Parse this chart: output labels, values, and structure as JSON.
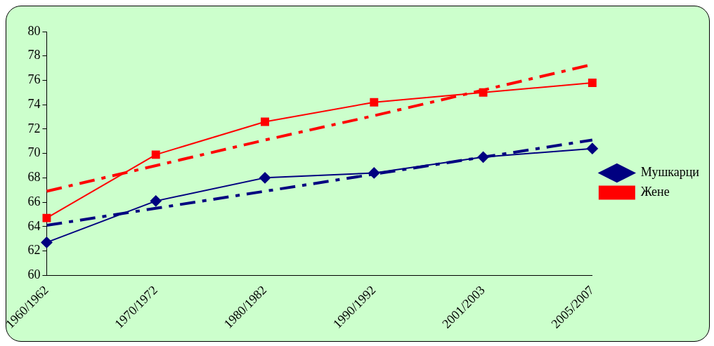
{
  "chart_data": {
    "type": "line",
    "categories": [
      "1960/1962",
      "1970/1972",
      "1980/1982",
      "1990/1992",
      "2001/2003",
      "2005/2007"
    ],
    "series": [
      {
        "name": "Мушкарци",
        "color": "#000080",
        "marker": "diamond",
        "values": [
          62.7,
          66.1,
          68.0,
          68.4,
          69.7,
          70.4
        ]
      },
      {
        "name": "Жене",
        "color": "#ff0000",
        "marker": "square",
        "values": [
          64.7,
          69.9,
          72.6,
          74.2,
          75.0,
          75.8
        ]
      },
      {
        "color": "#000080",
        "marker": "none",
        "line_style": "dashed",
        "values": [
          64.1,
          65.5,
          66.9,
          68.3,
          69.7,
          71.1
        ]
      },
      {
        "color": "#ff0000",
        "marker": "none",
        "line_style": "dashed",
        "values": [
          66.9,
          69.0,
          71.1,
          73.1,
          75.2,
          77.3
        ]
      }
    ],
    "ylim": [
      60,
      80
    ],
    "yticks": [
      60,
      62,
      64,
      66,
      68,
      70,
      72,
      74,
      76,
      78,
      80
    ],
    "grid": false,
    "legend": "right"
  }
}
